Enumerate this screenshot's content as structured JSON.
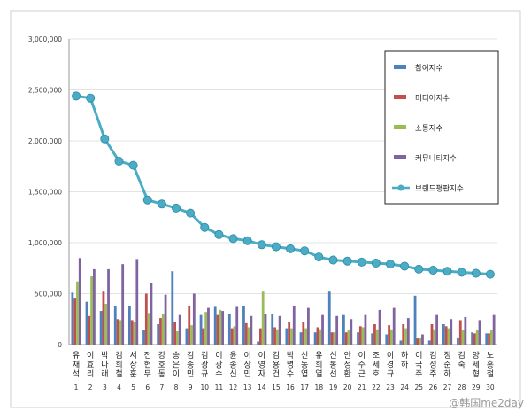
{
  "chart_data": {
    "type": "bar",
    "y_ticks": [
      "0",
      "500,000",
      "1,000,000",
      "1,500,000",
      "2,000,000",
      "2,500,000",
      "3,000,000"
    ],
    "ylim": [
      0,
      3000000
    ],
    "grid": true,
    "legend_position": "right",
    "categories": [
      "유재석",
      "이효리",
      "박나래",
      "김희철",
      "서장훈",
      "전현무",
      "강호동",
      "송은이",
      "김종민",
      "김광규",
      "이광수",
      "윤종신",
      "이상민",
      "이영자",
      "김용건",
      "박명수",
      "신동엽",
      "유희열",
      "신봉선",
      "안정환",
      "이수근",
      "조세호",
      "이경규",
      "하하",
      "이국주",
      "김성주",
      "정준하",
      "김숙",
      "양세형",
      "노홍철"
    ],
    "numbers": [
      "1",
      "2",
      "3",
      "4",
      "5",
      "6",
      "7",
      "8",
      "9",
      "10",
      "11",
      "12",
      "13",
      "14",
      "15",
      "16",
      "17",
      "18",
      "19",
      "20",
      "21",
      "22",
      "23",
      "24",
      "25",
      "26",
      "27",
      "28",
      "29",
      "30"
    ],
    "series": [
      {
        "name": "참여지수",
        "color": "#4f81bd",
        "type": "bar",
        "values": [
          510000,
          420000,
          330000,
          380000,
          380000,
          140000,
          200000,
          720000,
          160000,
          290000,
          370000,
          300000,
          380000,
          30000,
          300000,
          160000,
          120000,
          120000,
          520000,
          290000,
          120000,
          110000,
          100000,
          40000,
          480000,
          40000,
          200000,
          70000,
          120000,
          110000
        ]
      },
      {
        "name": "미디어지수",
        "color": "#c0504d",
        "type": "bar",
        "values": [
          460000,
          280000,
          520000,
          250000,
          240000,
          500000,
          260000,
          220000,
          380000,
          160000,
          290000,
          160000,
          210000,
          160000,
          170000,
          220000,
          220000,
          170000,
          120000,
          120000,
          180000,
          200000,
          190000,
          200000,
          60000,
          200000,
          180000,
          240000,
          110000,
          110000
        ]
      },
      {
        "name": "소통지수",
        "color": "#9bbb59",
        "type": "bar",
        "values": [
          620000,
          670000,
          400000,
          240000,
          220000,
          310000,
          300000,
          130000,
          190000,
          320000,
          340000,
          180000,
          170000,
          520000,
          150000,
          160000,
          160000,
          150000,
          120000,
          140000,
          170000,
          150000,
          150000,
          160000,
          70000,
          150000,
          160000,
          140000,
          140000,
          140000
        ]
      },
      {
        "name": "커뮤니티지수",
        "color": "#8064a2",
        "type": "bar",
        "values": [
          850000,
          740000,
          740000,
          790000,
          840000,
          600000,
          490000,
          290000,
          500000,
          360000,
          330000,
          370000,
          280000,
          300000,
          280000,
          380000,
          360000,
          290000,
          280000,
          250000,
          290000,
          340000,
          360000,
          260000,
          100000,
          290000,
          250000,
          270000,
          240000,
          290000
        ]
      },
      {
        "name": "브랜드평판지수",
        "color": "#4bacc6",
        "type": "line",
        "values": [
          2440000,
          2420000,
          2020000,
          1800000,
          1760000,
          1420000,
          1380000,
          1340000,
          1290000,
          1150000,
          1080000,
          1040000,
          1020000,
          980000,
          960000,
          940000,
          920000,
          860000,
          830000,
          820000,
          810000,
          800000,
          790000,
          770000,
          740000,
          730000,
          720000,
          710000,
          700000,
          690000
        ]
      }
    ]
  },
  "watermark": "@韩国me2day"
}
